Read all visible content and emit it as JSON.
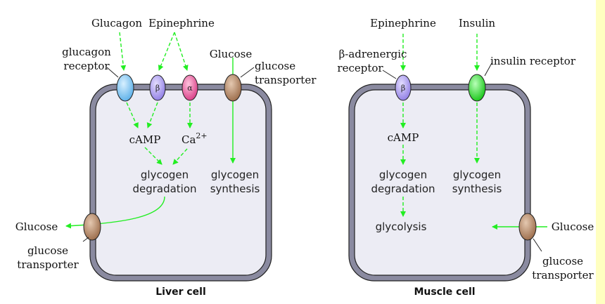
{
  "liver": {
    "caption": "Liver cell",
    "hormones": {
      "glucagon": "Glucagon",
      "epinephrine": "Epinephrine"
    },
    "glucose_in": "Glucose",
    "glucose_out": "Glucose",
    "glucagon_receptor": {
      "line1": "glucagon",
      "line2": "receptor"
    },
    "beta_symbol": "β",
    "alpha_symbol": "α",
    "transporter_top": {
      "line1": "glucose",
      "line2": "transporter"
    },
    "transporter_bottom": {
      "line1": "glucose",
      "line2": "transporter"
    },
    "camp": "cAMP",
    "calcium": {
      "base": "Ca",
      "sup": "2+"
    },
    "degradation": {
      "line1": "glycogen",
      "line2": "degradation"
    },
    "synthesis": {
      "line1": "glycogen",
      "line2": "synthesis"
    }
  },
  "muscle": {
    "caption": "Muscle cell",
    "hormones": {
      "epinephrine": "Epinephrine",
      "insulin": "Insulin"
    },
    "beta_receptor": {
      "line1": "β-adrenergic",
      "line2": "receptor"
    },
    "beta_symbol": "β",
    "insulin_receptor": "insulin receptor",
    "camp": "cAMP",
    "degradation": {
      "line1": "glycogen",
      "line2": "degradation"
    },
    "synthesis": {
      "line1": "glycogen",
      "line2": "synthesis"
    },
    "glycolysis": "glycolysis",
    "glucose_in": "Glucose",
    "transporter": {
      "line1": "glucose",
      "line2": "transporter"
    }
  },
  "colors": {
    "arrow": "#22ee22",
    "membrane": "#8a8aa0",
    "cytoplasm": "#ececf4",
    "glucagon_receptor": "#7cc4f2",
    "beta_receptor": "#a898ee",
    "alpha_receptor": "#ea5c9c",
    "transporter": "#b08464",
    "insulin_receptor": "#22dd22",
    "sideband": "#ffffc0"
  }
}
